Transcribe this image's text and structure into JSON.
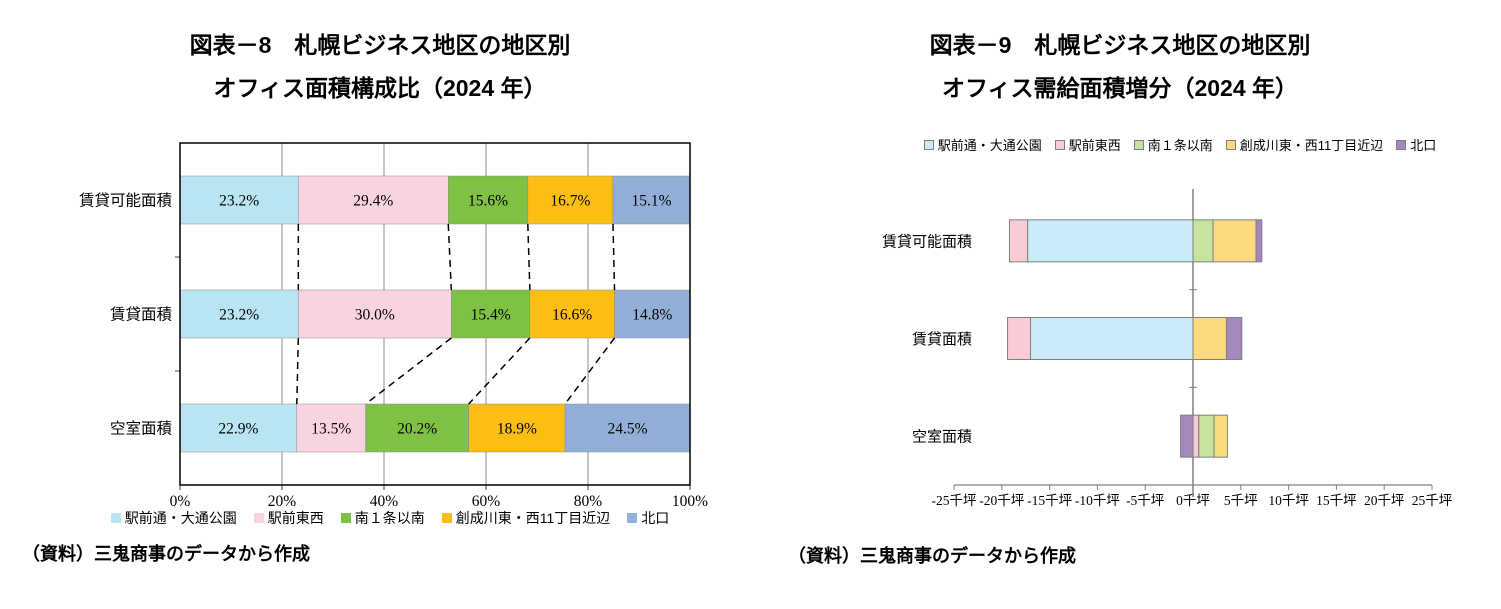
{
  "left_chart": {
    "title_line1": "図表－8　札幌ビジネス地区の地区別",
    "title_line2": "オフィス面積構成比（2024 年）",
    "source": "（資料）三鬼商事のデータから作成",
    "chart_data": {
      "type": "bar",
      "subtype": "horizontal-100pct-stacked",
      "categories": [
        "賃貸可能面積",
        "賃貸面積",
        "空室面積"
      ],
      "series": [
        {
          "name": "駅前通・大通公園",
          "color": "#B9E5F2",
          "values": [
            23.2,
            23.2,
            22.9
          ]
        },
        {
          "name": "駅前東西",
          "color": "#FAD3E3",
          "values": [
            29.4,
            30.0,
            13.5
          ]
        },
        {
          "name": "南１条以南",
          "color": "#7EC143",
          "values": [
            15.6,
            15.4,
            20.2
          ]
        },
        {
          "name": "創成川東・西11丁目近辺",
          "color": "#FCBE13",
          "values": [
            16.7,
            16.6,
            18.9
          ]
        },
        {
          "name": "北口",
          "color": "#92AFD7",
          "values": [
            15.1,
            14.8,
            24.5
          ]
        }
      ],
      "value_label_suffix": "%",
      "x_ticks": [
        "0%",
        "20%",
        "40%",
        "60%",
        "80%",
        "100%"
      ],
      "xlim": [
        0,
        100
      ],
      "grid": true,
      "series_lines": "dashed",
      "legend_position": "bottom"
    }
  },
  "right_chart": {
    "title_line1": "図表－9　札幌ビジネス地区の地区別",
    "title_line2": "オフィス需給面積増分（2024 年）",
    "source": "（資料）三鬼商事のデータから作成",
    "chart_data": {
      "type": "bar",
      "subtype": "horizontal-stacked-diverging",
      "unit": "千坪",
      "categories": [
        "賃貸可能面積",
        "賃貸面積",
        "空室面積"
      ],
      "series": [
        {
          "name": "駅前通・大通公園",
          "color": "#C9ECF8",
          "values": [
            -17.3,
            -17.0,
            0
          ]
        },
        {
          "name": "駅前東西",
          "color": "#F9CBD4",
          "values": [
            -1.9,
            -2.4,
            0.6
          ]
        },
        {
          "name": "南１条以南",
          "color": "#C7E3A0",
          "values": [
            2.1,
            0,
            1.6
          ]
        },
        {
          "name": "創成川東・西11丁目近辺",
          "color": "#FBDB7E",
          "values": [
            4.5,
            3.5,
            1.4
          ]
        },
        {
          "name": "北口",
          "color": "#A489BF",
          "values": [
            0.6,
            1.6,
            -1.3
          ]
        }
      ],
      "x_ticks": [
        "-25千坪",
        "-20千坪",
        "-15千坪",
        "-10千坪",
        "-5千坪",
        "0千坪",
        "5千坪",
        "10千坪",
        "15千坪",
        "20千坪",
        "25千坪"
      ],
      "xlim": [
        -25,
        25
      ],
      "grid": false,
      "legend_position": "top"
    }
  }
}
